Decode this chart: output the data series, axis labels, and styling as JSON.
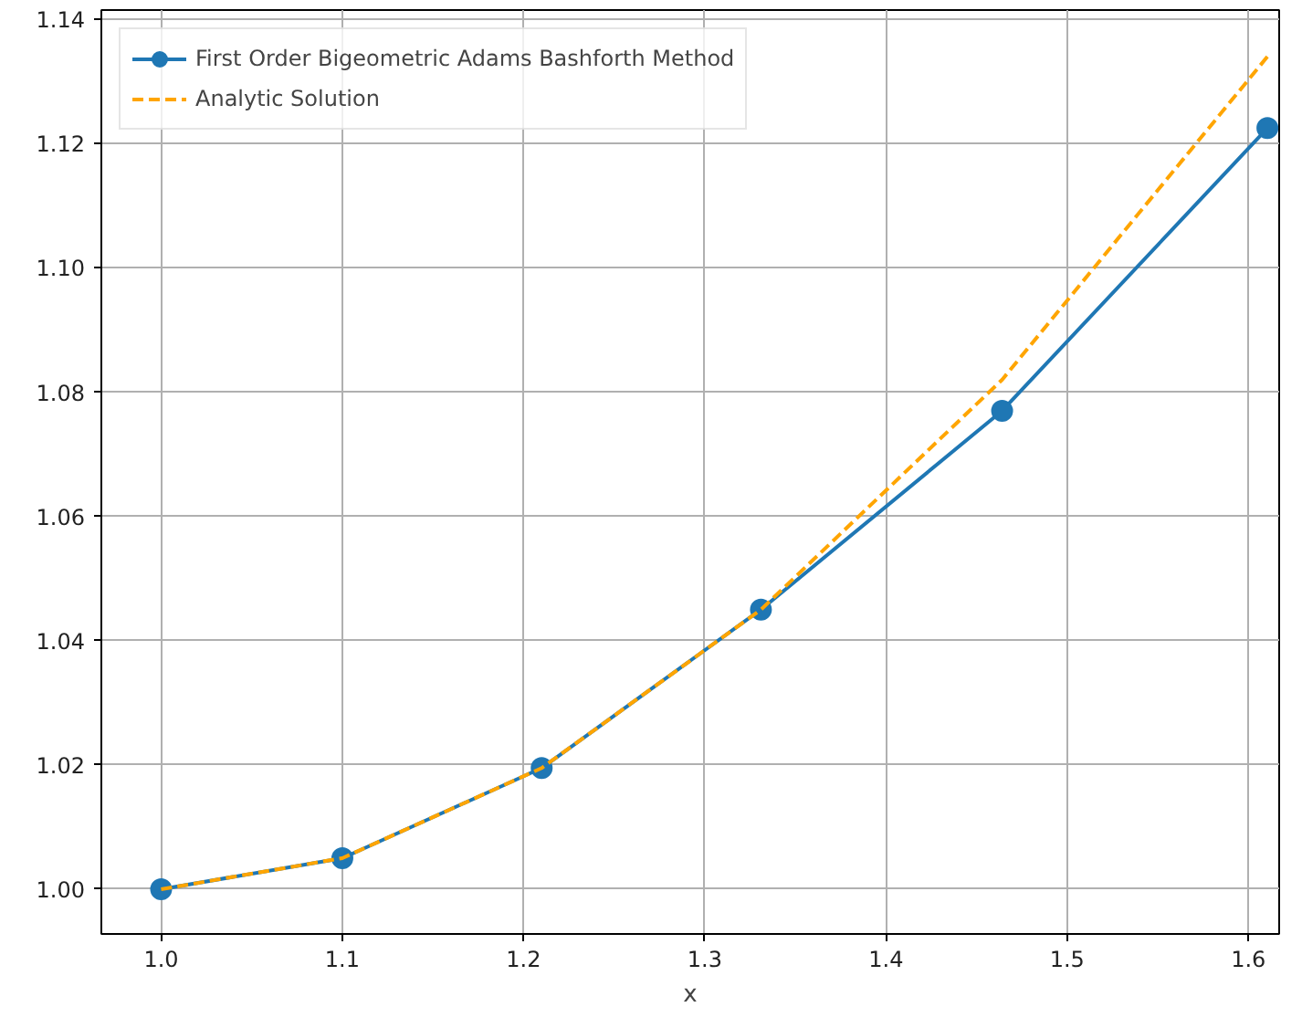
{
  "chart_data": {
    "type": "line",
    "xlabel": "x",
    "x": [
      1.0,
      1.1,
      1.21,
      1.331,
      1.4641,
      1.61051
    ],
    "series": [
      {
        "name": "First Order Bigeometric Adams Bashforth Method",
        "color": "#1f77b4",
        "values": [
          1.0,
          1.005,
          1.0195,
          1.045,
          1.077,
          1.1225
        ],
        "marker": "circle",
        "line_style": "solid"
      },
      {
        "name": "Analytic Solution",
        "color": "#ffa500",
        "values": [
          1.0,
          1.005,
          1.0195,
          1.045,
          1.082,
          1.134
        ],
        "marker": "none",
        "line_style": "dashed"
      }
    ],
    "xlim": [
      0.967,
      1.617
    ],
    "ylim": [
      0.9928,
      1.1415
    ],
    "xticks": [
      {
        "value": 1.0,
        "label": "1.0"
      },
      {
        "value": 1.1,
        "label": "1.1"
      },
      {
        "value": 1.2,
        "label": "1.2"
      },
      {
        "value": 1.3,
        "label": "1.3"
      },
      {
        "value": 1.4,
        "label": "1.4"
      },
      {
        "value": 1.5,
        "label": "1.5"
      },
      {
        "value": 1.6,
        "label": "1.6"
      }
    ],
    "yticks": [
      {
        "value": 1.0,
        "label": "1.00"
      },
      {
        "value": 1.02,
        "label": "1.02"
      },
      {
        "value": 1.04,
        "label": "1.04"
      },
      {
        "value": 1.06,
        "label": "1.06"
      },
      {
        "value": 1.08,
        "label": "1.08"
      },
      {
        "value": 1.1,
        "label": "1.10"
      },
      {
        "value": 1.12,
        "label": "1.12"
      },
      {
        "value": 1.14,
        "label": "1.14"
      }
    ],
    "grid": true,
    "legend": "top left"
  }
}
